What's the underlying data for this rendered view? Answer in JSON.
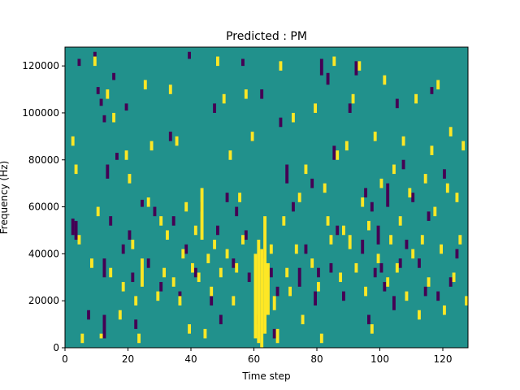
{
  "chart_data": {
    "type": "heatmap",
    "title": "Predicted : PM",
    "xlabel": "Time step",
    "ylabel": "Frequency (Hz)",
    "xlim": [
      0,
      128
    ],
    "ylim": [
      0,
      128000
    ],
    "x_ticks": [
      0,
      20,
      40,
      60,
      80,
      100,
      120
    ],
    "y_ticks": [
      0,
      20000,
      40000,
      60000,
      80000,
      100000,
      120000
    ],
    "grid": false,
    "legend": "none",
    "background_value": 0,
    "colormap": {
      "-1": "#440154",
      "0": "#21918c",
      "1": "#fde725"
    },
    "frequency_bins": 128,
    "cells_low": [
      [
        2,
        48000,
        55000
      ],
      [
        3,
        46000,
        54000
      ],
      [
        4,
        120000,
        123000
      ],
      [
        7,
        12000,
        16000
      ],
      [
        9,
        123000,
        126000
      ],
      [
        10,
        108000,
        111000
      ],
      [
        11,
        103000,
        106000
      ],
      [
        12,
        96000,
        99000
      ],
      [
        12,
        30000,
        38000
      ],
      [
        12,
        4000,
        14000
      ],
      [
        13,
        72000,
        78000
      ],
      [
        14,
        52000,
        56000
      ],
      [
        15,
        114000,
        117000
      ],
      [
        16,
        80000,
        83000
      ],
      [
        18,
        40000,
        44000
      ],
      [
        19,
        101000,
        104000
      ],
      [
        20,
        46000,
        50000
      ],
      [
        21,
        28000,
        32000
      ],
      [
        22,
        8000,
        12000
      ],
      [
        24,
        60000,
        63000
      ],
      [
        26,
        34000,
        38000
      ],
      [
        28,
        56000,
        60000
      ],
      [
        30,
        24000,
        28000
      ],
      [
        33,
        88000,
        92000
      ],
      [
        34,
        52000,
        56000
      ],
      [
        36,
        20000,
        24000
      ],
      [
        38,
        40000,
        44000
      ],
      [
        39,
        123000,
        126000
      ],
      [
        41,
        30000,
        34000
      ],
      [
        43,
        58000,
        62000
      ],
      [
        46,
        18000,
        22000
      ],
      [
        47,
        100000,
        104000
      ],
      [
        48,
        48000,
        52000
      ],
      [
        49,
        10000,
        14000
      ],
      [
        51,
        62000,
        66000
      ],
      [
        53,
        34000,
        38000
      ],
      [
        54,
        56000,
        60000
      ],
      [
        56,
        120000,
        123000
      ],
      [
        57,
        46000,
        50000
      ],
      [
        58,
        28000,
        32000
      ],
      [
        59,
        88000,
        92000
      ],
      [
        60,
        10000,
        14000
      ],
      [
        62,
        106000,
        110000
      ],
      [
        63,
        38000,
        42000
      ],
      [
        65,
        30000,
        34000
      ],
      [
        66,
        4000,
        8000
      ],
      [
        67,
        22000,
        26000
      ],
      [
        68,
        94000,
        98000
      ],
      [
        70,
        70000,
        78000
      ],
      [
        72,
        58000,
        62000
      ],
      [
        74,
        26000,
        34000
      ],
      [
        76,
        40000,
        44000
      ],
      [
        78,
        68000,
        72000
      ],
      [
        79,
        18000,
        24000
      ],
      [
        80,
        30000,
        34000
      ],
      [
        81,
        116000,
        123000
      ],
      [
        83,
        112000,
        117000
      ],
      [
        84,
        32000,
        36000
      ],
      [
        85,
        80000,
        86000
      ],
      [
        86,
        48000,
        52000
      ],
      [
        88,
        20000,
        24000
      ],
      [
        90,
        100000,
        104000
      ],
      [
        92,
        116000,
        122000
      ],
      [
        94,
        40000,
        46000
      ],
      [
        95,
        64000,
        68000
      ],
      [
        96,
        10000,
        14000
      ],
      [
        97,
        58000,
        62000
      ],
      [
        98,
        30000,
        34000
      ],
      [
        99,
        44000,
        52000
      ],
      [
        100,
        32000,
        36000
      ],
      [
        101,
        24000,
        28000
      ],
      [
        102,
        60000,
        70000
      ],
      [
        104,
        16000,
        22000
      ],
      [
        105,
        102000,
        106000
      ],
      [
        106,
        34000,
        38000
      ],
      [
        107,
        76000,
        80000
      ],
      [
        108,
        42000,
        46000
      ],
      [
        110,
        62000,
        66000
      ],
      [
        112,
        34000,
        38000
      ],
      [
        114,
        22000,
        26000
      ],
      [
        115,
        54000,
        58000
      ],
      [
        116,
        108000,
        111000
      ],
      [
        118,
        20000,
        24000
      ],
      [
        120,
        72000,
        76000
      ],
      [
        122,
        26000,
        30000
      ],
      [
        124,
        38000,
        42000
      ]
    ],
    "cells_high": [
      [
        2,
        86000,
        90000
      ],
      [
        3,
        74000,
        78000
      ],
      [
        4,
        44000,
        48000
      ],
      [
        5,
        2000,
        6000
      ],
      [
        8,
        34000,
        38000
      ],
      [
        9,
        120000,
        124000
      ],
      [
        10,
        56000,
        60000
      ],
      [
        11,
        4000,
        6000
      ],
      [
        13,
        106000,
        110000
      ],
      [
        14,
        30000,
        34000
      ],
      [
        15,
        96000,
        100000
      ],
      [
        17,
        12000,
        16000
      ],
      [
        18,
        24000,
        28000
      ],
      [
        19,
        80000,
        84000
      ],
      [
        20,
        70000,
        74000
      ],
      [
        21,
        42000,
        46000
      ],
      [
        22,
        18000,
        22000
      ],
      [
        23,
        2000,
        6000
      ],
      [
        24,
        26000,
        38000
      ],
      [
        25,
        110000,
        114000
      ],
      [
        26,
        60000,
        64000
      ],
      [
        27,
        84000,
        88000
      ],
      [
        29,
        20000,
        24000
      ],
      [
        30,
        52000,
        56000
      ],
      [
        31,
        30000,
        34000
      ],
      [
        32,
        46000,
        50000
      ],
      [
        33,
        108000,
        112000
      ],
      [
        34,
        26000,
        30000
      ],
      [
        35,
        86000,
        90000
      ],
      [
        36,
        18000,
        22000
      ],
      [
        37,
        38000,
        42000
      ],
      [
        38,
        58000,
        62000
      ],
      [
        39,
        6000,
        10000
      ],
      [
        40,
        32000,
        36000
      ],
      [
        41,
        48000,
        52000
      ],
      [
        42,
        28000,
        32000
      ],
      [
        43,
        46000,
        68000
      ],
      [
        44,
        4000,
        8000
      ],
      [
        45,
        36000,
        40000
      ],
      [
        46,
        22000,
        26000
      ],
      [
        47,
        42000,
        46000
      ],
      [
        48,
        120000,
        124000
      ],
      [
        49,
        30000,
        34000
      ],
      [
        50,
        104000,
        108000
      ],
      [
        51,
        38000,
        42000
      ],
      [
        52,
        80000,
        84000
      ],
      [
        53,
        18000,
        22000
      ],
      [
        54,
        32000,
        36000
      ],
      [
        55,
        62000,
        66000
      ],
      [
        56,
        44000,
        48000
      ],
      [
        57,
        106000,
        110000
      ],
      [
        59,
        88000,
        92000
      ],
      [
        60,
        4000,
        40000
      ],
      [
        61,
        2000,
        46000
      ],
      [
        62,
        0,
        42000
      ],
      [
        63,
        6000,
        56000
      ],
      [
        64,
        14000,
        36000
      ],
      [
        65,
        40000,
        44000
      ],
      [
        66,
        16000,
        22000
      ],
      [
        67,
        2000,
        8000
      ],
      [
        68,
        118000,
        122000
      ],
      [
        69,
        52000,
        56000
      ],
      [
        70,
        30000,
        34000
      ],
      [
        71,
        22000,
        26000
      ],
      [
        72,
        96000,
        100000
      ],
      [
        73,
        40000,
        44000
      ],
      [
        74,
        62000,
        66000
      ],
      [
        75,
        10000,
        14000
      ],
      [
        76,
        74000,
        78000
      ],
      [
        78,
        34000,
        38000
      ],
      [
        79,
        100000,
        104000
      ],
      [
        80,
        24000,
        28000
      ],
      [
        81,
        2000,
        6000
      ],
      [
        82,
        66000,
        70000
      ],
      [
        83,
        52000,
        56000
      ],
      [
        84,
        44000,
        48000
      ],
      [
        85,
        120000,
        124000
      ],
      [
        86,
        80000,
        84000
      ],
      [
        87,
        28000,
        32000
      ],
      [
        88,
        48000,
        52000
      ],
      [
        89,
        84000,
        88000
      ],
      [
        90,
        42000,
        48000
      ],
      [
        91,
        104000,
        108000
      ],
      [
        92,
        32000,
        36000
      ],
      [
        93,
        118000,
        122000
      ],
      [
        94,
        60000,
        64000
      ],
      [
        95,
        22000,
        26000
      ],
      [
        96,
        50000,
        54000
      ],
      [
        97,
        6000,
        10000
      ],
      [
        98,
        88000,
        92000
      ],
      [
        99,
        36000,
        40000
      ],
      [
        100,
        68000,
        72000
      ],
      [
        101,
        112000,
        116000
      ],
      [
        102,
        26000,
        30000
      ],
      [
        103,
        44000,
        48000
      ],
      [
        104,
        74000,
        78000
      ],
      [
        105,
        32000,
        36000
      ],
      [
        106,
        52000,
        56000
      ],
      [
        107,
        86000,
        90000
      ],
      [
        108,
        20000,
        24000
      ],
      [
        109,
        64000,
        68000
      ],
      [
        110,
        38000,
        42000
      ],
      [
        111,
        104000,
        108000
      ],
      [
        112,
        12000,
        16000
      ],
      [
        113,
        44000,
        48000
      ],
      [
        114,
        70000,
        74000
      ],
      [
        115,
        26000,
        30000
      ],
      [
        116,
        82000,
        86000
      ],
      [
        117,
        56000,
        60000
      ],
      [
        118,
        110000,
        114000
      ],
      [
        119,
        40000,
        44000
      ],
      [
        120,
        14000,
        18000
      ],
      [
        121,
        66000,
        70000
      ],
      [
        122,
        90000,
        94000
      ],
      [
        123,
        28000,
        32000
      ],
      [
        124,
        62000,
        66000
      ],
      [
        125,
        44000,
        48000
      ],
      [
        126,
        84000,
        88000
      ],
      [
        127,
        18000,
        22000
      ]
    ]
  }
}
